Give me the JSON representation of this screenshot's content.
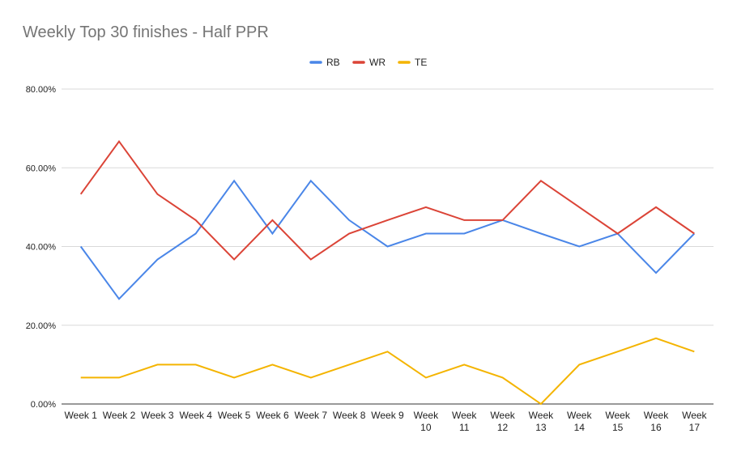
{
  "chart_data": {
    "type": "line",
    "title": "Weekly Top 30 finishes - Half PPR",
    "xlabel": "",
    "ylabel": "",
    "categories": [
      [
        "Week 1"
      ],
      [
        "Week 2"
      ],
      [
        "Week 3"
      ],
      [
        "Week 4"
      ],
      [
        "Week 5"
      ],
      [
        "Week 6"
      ],
      [
        "Week 7"
      ],
      [
        "Week 8"
      ],
      [
        "Week 9"
      ],
      [
        "Week",
        "10"
      ],
      [
        "Week",
        "11"
      ],
      [
        "Week",
        "12"
      ],
      [
        "Week",
        "13"
      ],
      [
        "Week",
        "14"
      ],
      [
        "Week",
        "15"
      ],
      [
        "Week",
        "16"
      ],
      [
        "Week",
        "17"
      ]
    ],
    "ylim": [
      0,
      80
    ],
    "yticks": [
      {
        "value": 0,
        "label": "0.00%"
      },
      {
        "value": 20,
        "label": "20.00%"
      },
      {
        "value": 40,
        "label": "40.00%"
      },
      {
        "value": 60,
        "label": "60.00%"
      },
      {
        "value": 80,
        "label": "80.00%"
      }
    ],
    "grid": true,
    "legend_position": "top-center",
    "series": [
      {
        "name": "RB",
        "color": "#4a86e8",
        "values": [
          40.0,
          26.7,
          36.7,
          43.3,
          56.7,
          43.3,
          56.7,
          46.7,
          40.0,
          43.3,
          43.3,
          46.7,
          43.3,
          40.0,
          43.3,
          33.3,
          43.3
        ]
      },
      {
        "name": "WR",
        "color": "#db4437",
        "values": [
          53.3,
          66.7,
          53.3,
          46.7,
          36.7,
          46.7,
          36.7,
          43.3,
          46.7,
          50.0,
          46.7,
          46.7,
          56.7,
          50.0,
          43.3,
          50.0,
          43.3
        ]
      },
      {
        "name": "TE",
        "color": "#f4b400",
        "values": [
          6.7,
          6.7,
          10.0,
          10.0,
          6.7,
          10.0,
          6.7,
          10.0,
          13.3,
          6.7,
          10.0,
          6.7,
          0.0,
          10.0,
          13.3,
          16.7,
          13.3
        ]
      }
    ]
  }
}
